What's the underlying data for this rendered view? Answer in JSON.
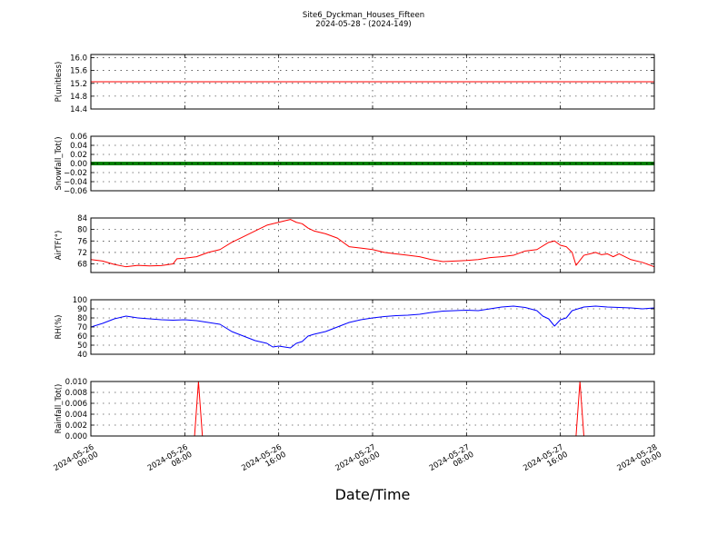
{
  "title": "Site6_Dyckman_Houses_Fifteen",
  "subtitle": "2024-05-28 - (2024-149)",
  "xlabel": "Date/Time",
  "chart_data": {
    "type": "line",
    "shared_x_axis": {
      "range": [
        "2024-05-26 00:00",
        "2024-05-28 00:00"
      ],
      "ticks": [
        {
          "value": "2024-05-26 00:00",
          "line1": "2024-05-26",
          "line2": "00:00"
        },
        {
          "value": "2024-05-26 08:00",
          "line1": "2024-05-26",
          "line2": "08:00"
        },
        {
          "value": "2024-05-26 16:00",
          "line1": "2024-05-26",
          "line2": "16:00"
        },
        {
          "value": "2024-05-27 00:00",
          "line1": "2024-05-27",
          "line2": "00:00"
        },
        {
          "value": "2024-05-27 08:00",
          "line1": "2024-05-27",
          "line2": "08:00"
        },
        {
          "value": "2024-05-27 16:00",
          "line1": "2024-05-27",
          "line2": "16:00"
        },
        {
          "value": "2024-05-28 00:00",
          "line1": "2024-05-28",
          "line2": "00:00"
        }
      ],
      "vertical_grid_at": [
        "2024-05-26 08:00",
        "2024-05-26 16:00",
        "2024-05-27 00:00",
        "2024-05-27 08:00",
        "2024-05-27 16:00"
      ]
    },
    "panels": [
      {
        "ylabel": "P(unitless)",
        "ylim": [
          14.4,
          16.1
        ],
        "yticks": [
          14.4,
          14.8,
          15.2,
          15.6,
          16.0
        ],
        "ytick_labels": [
          "14.4",
          "14.8",
          "15.2",
          "15.6",
          "16.0"
        ],
        "color": "#ff0000",
        "style": "line",
        "grid": true,
        "points": [
          [
            "2024-05-26 00:00",
            15.25
          ],
          [
            "2024-05-28 00:00",
            15.25
          ]
        ]
      },
      {
        "ylabel": "Snowfall_Tot()",
        "ylim": [
          -0.06,
          0.06
        ],
        "yticks": [
          -0.06,
          -0.04,
          -0.02,
          0.0,
          0.02,
          0.04,
          0.06
        ],
        "ytick_labels": [
          "−0.06",
          "−0.04",
          "−0.02",
          "0.00",
          "0.02",
          "0.04",
          "0.06"
        ],
        "color": "#008000",
        "style": "thick-line",
        "grid": true,
        "points": [
          [
            "2024-05-26 00:00",
            0.0
          ],
          [
            "2024-05-28 00:00",
            0.0
          ]
        ]
      },
      {
        "ylabel": "AirTF(°)",
        "ylim": [
          65,
          84
        ],
        "yticks": [
          68,
          72,
          76,
          80,
          84
        ],
        "ytick_labels": [
          "68",
          "72",
          "76",
          "80",
          "84"
        ],
        "color": "#ff0000",
        "style": "line",
        "grid": true,
        "points": [
          [
            "2024-05-26 00:00",
            69.5
          ],
          [
            "2024-05-26 01:00",
            69.0
          ],
          [
            "2024-05-26 02:00",
            67.8
          ],
          [
            "2024-05-26 03:00",
            67.0
          ],
          [
            "2024-05-26 04:00",
            67.5
          ],
          [
            "2024-05-26 05:00",
            67.3
          ],
          [
            "2024-05-26 06:00",
            67.4
          ],
          [
            "2024-05-26 07:00",
            68.0
          ],
          [
            "2024-05-26 07:20",
            69.8
          ],
          [
            "2024-05-26 08:00",
            70.0
          ],
          [
            "2024-05-26 09:00",
            70.5
          ],
          [
            "2024-05-26 10:00",
            72.0
          ],
          [
            "2024-05-26 11:00",
            73.0
          ],
          [
            "2024-05-26 12:00",
            75.5
          ],
          [
            "2024-05-26 13:00",
            77.5
          ],
          [
            "2024-05-26 14:00",
            79.5
          ],
          [
            "2024-05-26 15:00",
            81.5
          ],
          [
            "2024-05-26 16:00",
            82.5
          ],
          [
            "2024-05-26 16:30",
            83.0
          ],
          [
            "2024-05-26 17:00",
            83.5
          ],
          [
            "2024-05-26 17:30",
            82.5
          ],
          [
            "2024-05-26 18:00",
            82.0
          ],
          [
            "2024-05-26 18:30",
            80.5
          ],
          [
            "2024-05-26 19:00",
            79.5
          ],
          [
            "2024-05-26 20:00",
            78.5
          ],
          [
            "2024-05-26 21:00",
            77.0
          ],
          [
            "2024-05-26 22:00",
            74.0
          ],
          [
            "2024-05-26 23:00",
            73.5
          ],
          [
            "2024-05-27 00:00",
            73.0
          ],
          [
            "2024-05-27 01:00",
            72.0
          ],
          [
            "2024-05-27 02:00",
            71.5
          ],
          [
            "2024-05-27 03:00",
            71.0
          ],
          [
            "2024-05-27 04:00",
            70.5
          ],
          [
            "2024-05-27 05:00",
            69.5
          ],
          [
            "2024-05-27 06:00",
            68.8
          ],
          [
            "2024-05-27 07:00",
            69.0
          ],
          [
            "2024-05-27 08:00",
            69.2
          ],
          [
            "2024-05-27 09:00",
            69.5
          ],
          [
            "2024-05-27 10:00",
            70.2
          ],
          [
            "2024-05-27 11:00",
            70.5
          ],
          [
            "2024-05-27 12:00",
            71.0
          ],
          [
            "2024-05-27 13:00",
            72.5
          ],
          [
            "2024-05-27 14:00",
            73.0
          ],
          [
            "2024-05-27 15:00",
            75.5
          ],
          [
            "2024-05-27 15:30",
            76.0
          ],
          [
            "2024-05-27 16:00",
            74.5
          ],
          [
            "2024-05-27 16:30",
            74.0
          ],
          [
            "2024-05-27 17:00",
            72.0
          ],
          [
            "2024-05-27 17:20",
            67.5
          ],
          [
            "2024-05-27 18:00",
            71.0
          ],
          [
            "2024-05-27 18:30",
            71.5
          ],
          [
            "2024-05-27 19:00",
            72.0
          ],
          [
            "2024-05-27 19:30",
            71.2
          ],
          [
            "2024-05-27 20:00",
            71.5
          ],
          [
            "2024-05-27 20:30",
            70.5
          ],
          [
            "2024-05-27 21:00",
            71.5
          ],
          [
            "2024-05-27 22:00",
            69.5
          ],
          [
            "2024-05-27 23:00",
            68.5
          ],
          [
            "2024-05-28 00:00",
            67.0
          ]
        ]
      },
      {
        "ylabel": "RH(%)",
        "ylim": [
          40,
          100
        ],
        "yticks": [
          40,
          50,
          60,
          70,
          80,
          90,
          100
        ],
        "ytick_labels": [
          "40",
          "50",
          "60",
          "70",
          "80",
          "90",
          "100"
        ],
        "color": "#0000ff",
        "style": "line",
        "grid": true,
        "points": [
          [
            "2024-05-26 00:00",
            70.0
          ],
          [
            "2024-05-26 01:00",
            74.0
          ],
          [
            "2024-05-26 02:00",
            79.0
          ],
          [
            "2024-05-26 03:00",
            82.0
          ],
          [
            "2024-05-26 04:00",
            80.0
          ],
          [
            "2024-05-26 05:00",
            79.0
          ],
          [
            "2024-05-26 06:00",
            78.0
          ],
          [
            "2024-05-26 07:00",
            77.5
          ],
          [
            "2024-05-26 08:00",
            78.0
          ],
          [
            "2024-05-26 09:00",
            77.0
          ],
          [
            "2024-05-26 10:00",
            75.0
          ],
          [
            "2024-05-26 11:00",
            73.0
          ],
          [
            "2024-05-26 12:00",
            65.0
          ],
          [
            "2024-05-26 13:00",
            60.0
          ],
          [
            "2024-05-26 14:00",
            55.0
          ],
          [
            "2024-05-26 15:00",
            52.0
          ],
          [
            "2024-05-26 15:30",
            48.0
          ],
          [
            "2024-05-26 16:00",
            49.0
          ],
          [
            "2024-05-26 17:00",
            47.0
          ],
          [
            "2024-05-26 17:30",
            52.0
          ],
          [
            "2024-05-26 18:00",
            54.0
          ],
          [
            "2024-05-26 18:30",
            60.0
          ],
          [
            "2024-05-26 19:00",
            62.0
          ],
          [
            "2024-05-26 20:00",
            65.0
          ],
          [
            "2024-05-26 21:00",
            70.0
          ],
          [
            "2024-05-26 22:00",
            75.0
          ],
          [
            "2024-05-26 23:00",
            78.0
          ],
          [
            "2024-05-27 00:00",
            80.0
          ],
          [
            "2024-05-27 01:00",
            81.5
          ],
          [
            "2024-05-27 02:00",
            82.5
          ],
          [
            "2024-05-27 03:00",
            83.0
          ],
          [
            "2024-05-27 04:00",
            84.0
          ],
          [
            "2024-05-27 05:00",
            86.0
          ],
          [
            "2024-05-27 06:00",
            87.5
          ],
          [
            "2024-05-27 07:00",
            88.0
          ],
          [
            "2024-05-27 08:00",
            88.5
          ],
          [
            "2024-05-27 09:00",
            88.0
          ],
          [
            "2024-05-27 10:00",
            90.0
          ],
          [
            "2024-05-27 11:00",
            92.0
          ],
          [
            "2024-05-27 12:00",
            93.0
          ],
          [
            "2024-05-27 13:00",
            91.5
          ],
          [
            "2024-05-27 14:00",
            88.0
          ],
          [
            "2024-05-27 14:30",
            82.0
          ],
          [
            "2024-05-27 15:00",
            79.0
          ],
          [
            "2024-05-27 15:30",
            71.0
          ],
          [
            "2024-05-27 16:00",
            78.0
          ],
          [
            "2024-05-27 16:30",
            80.0
          ],
          [
            "2024-05-27 17:00",
            88.0
          ],
          [
            "2024-05-27 18:00",
            92.0
          ],
          [
            "2024-05-27 19:00",
            93.0
          ],
          [
            "2024-05-27 20:00",
            92.0
          ],
          [
            "2024-05-27 21:00",
            91.5
          ],
          [
            "2024-05-27 22:00",
            91.0
          ],
          [
            "2024-05-27 23:00",
            90.0
          ],
          [
            "2024-05-28 00:00",
            91.0
          ]
        ]
      },
      {
        "ylabel": "Rainfall_Tot()",
        "ylim": [
          0.0,
          0.01
        ],
        "yticks": [
          0.0,
          0.002,
          0.004,
          0.006,
          0.008,
          0.01
        ],
        "ytick_labels": [
          "0.000",
          "0.002",
          "0.004",
          "0.006",
          "0.008",
          "0.010"
        ],
        "color": "#ff0000",
        "style": "line",
        "grid": true,
        "points": [
          [
            "2024-05-26 00:00",
            0.0
          ],
          [
            "2024-05-26 08:50",
            0.0
          ],
          [
            "2024-05-26 09:10",
            0.01
          ],
          [
            "2024-05-26 09:30",
            0.0
          ],
          [
            "2024-05-27 17:20",
            0.0
          ],
          [
            "2024-05-27 17:40",
            0.01
          ],
          [
            "2024-05-27 18:00",
            0.0
          ],
          [
            "2024-05-28 00:00",
            0.0
          ]
        ]
      }
    ]
  }
}
